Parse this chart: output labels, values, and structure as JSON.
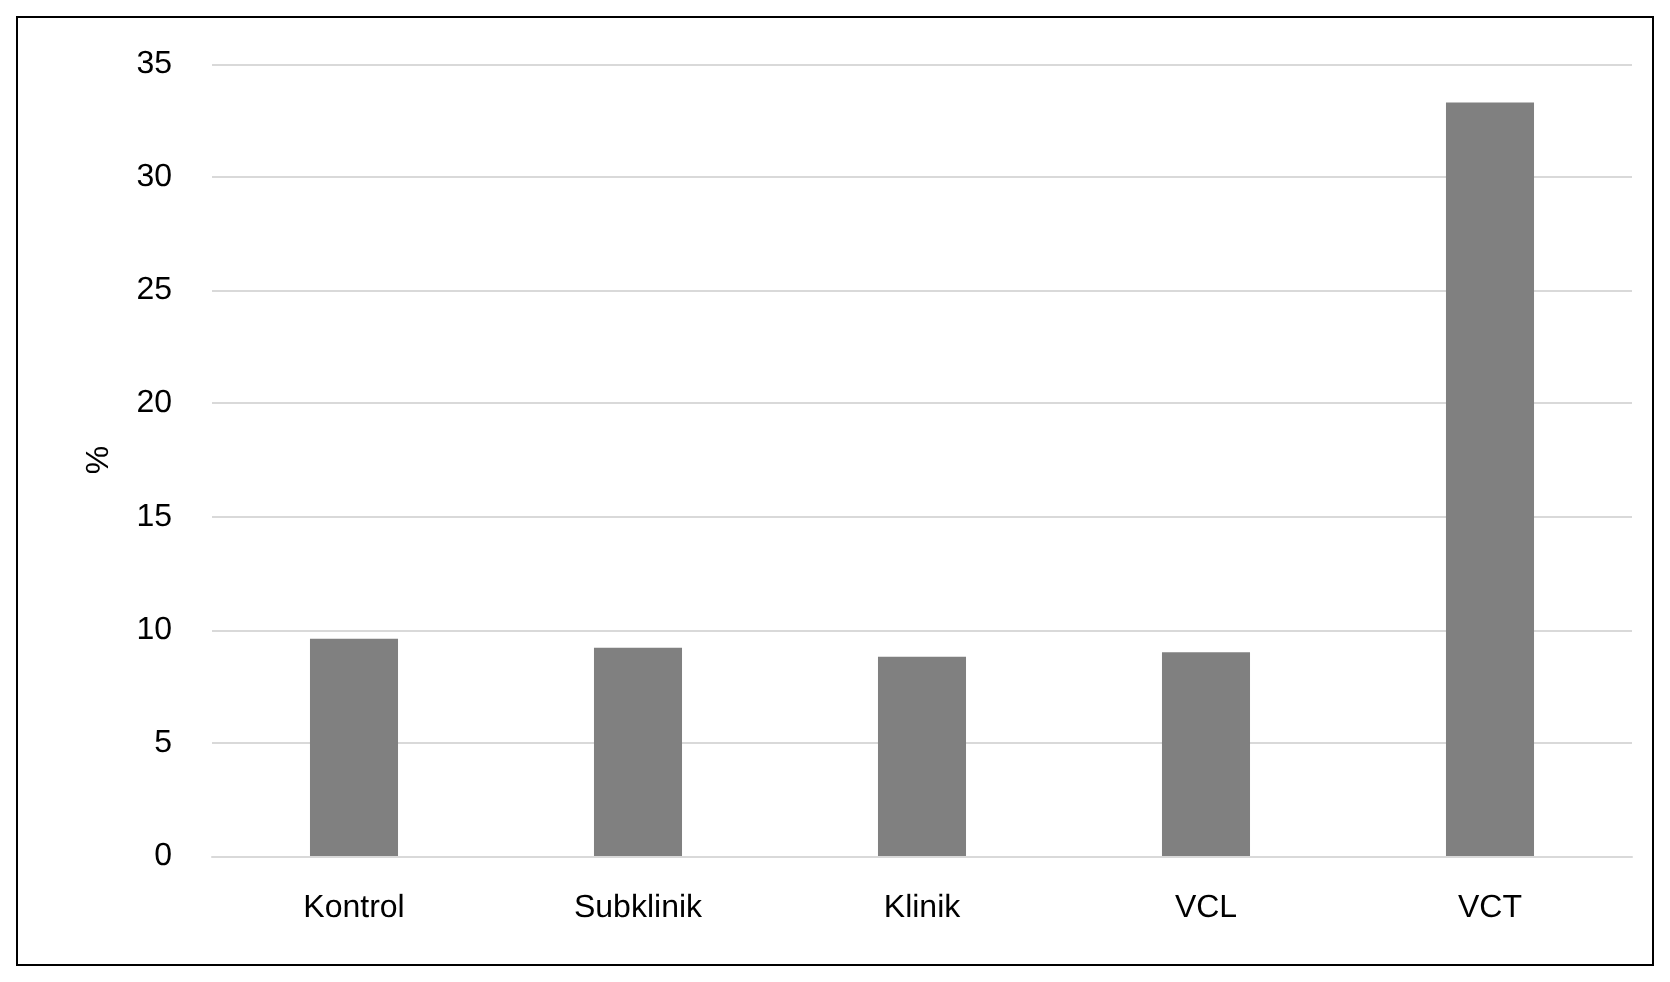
{
  "chart_data": {
    "type": "bar",
    "ylabel": "%",
    "categories": [
      "Kontrol",
      "Subklinik",
      "Klinik",
      "VCL",
      "VCT"
    ],
    "values": [
      9.6,
      9.2,
      8.8,
      9.0,
      33.3
    ],
    "color": "#808080",
    "ylim": [
      0,
      35
    ],
    "yticks": [
      0,
      5,
      10,
      15,
      20,
      25,
      30,
      35
    ],
    "grid": "y"
  }
}
